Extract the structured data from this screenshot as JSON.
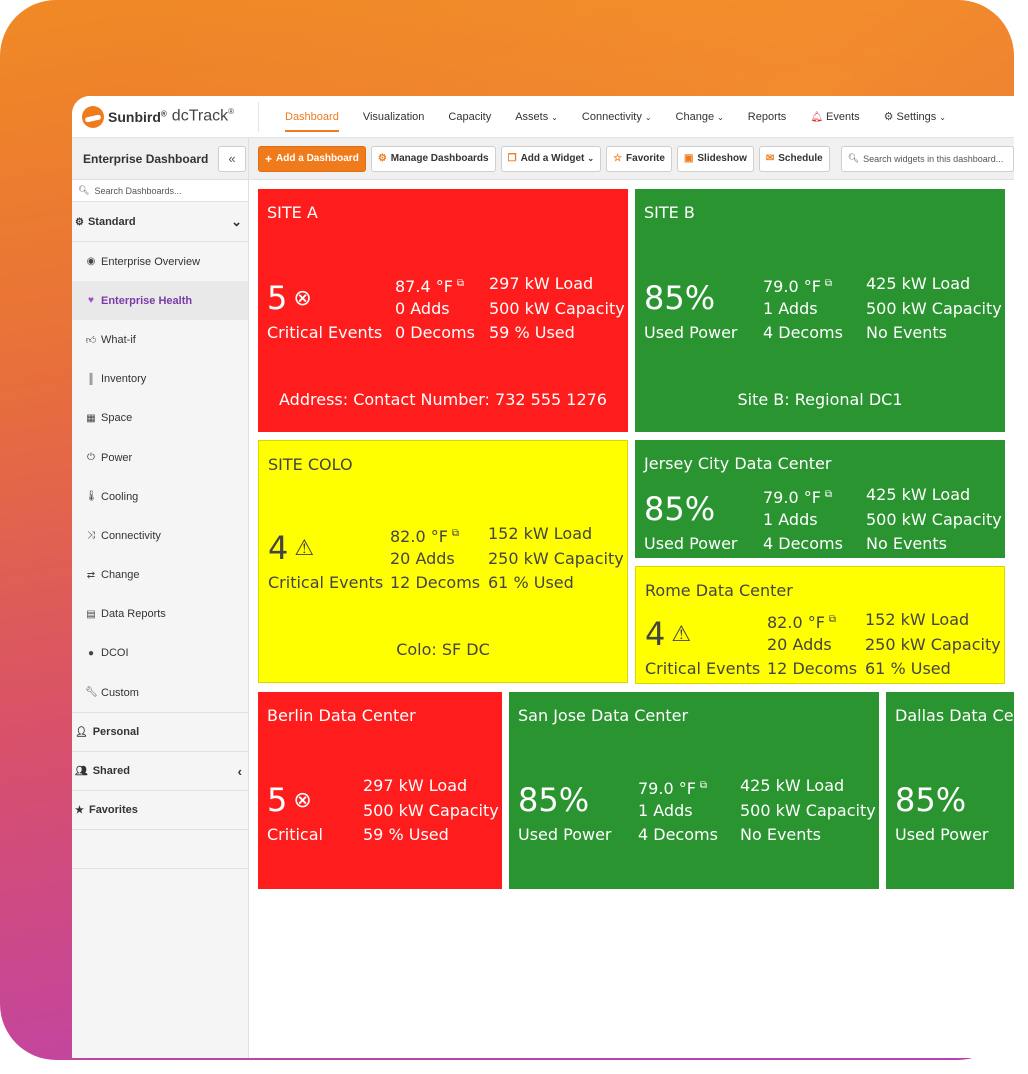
{
  "app": {
    "brand": "Sunbird",
    "product": "dcTrack",
    "reg_mark": "®"
  },
  "nav": {
    "items": [
      "Dashboard",
      "Visualization",
      "Capacity",
      "Assets",
      "Connectivity",
      "Change",
      "Reports",
      "Events",
      "Settings"
    ]
  },
  "sidebar": {
    "title": "Enterprise Dashboard",
    "collapse_glyph": "«",
    "search_placeholder": "Search Dashboards...",
    "group_standard": "Standard",
    "items": [
      {
        "label": "Enterprise Overview",
        "icon": "globe-icon"
      },
      {
        "label": "Enterprise Health",
        "icon": "heart-icon"
      },
      {
        "label": "What-if",
        "icon": "thumbs-up-icon"
      },
      {
        "label": "Inventory",
        "icon": "barcode-icon"
      },
      {
        "label": "Space",
        "icon": "cubes-icon"
      },
      {
        "label": "Power",
        "icon": "power-icon"
      },
      {
        "label": "Cooling",
        "icon": "thermometer-icon"
      },
      {
        "label": "Connectivity",
        "icon": "random-icon"
      },
      {
        "label": "Change",
        "icon": "exchange-icon"
      },
      {
        "label": "Data Reports",
        "icon": "list-icon"
      },
      {
        "label": "DCOI",
        "icon": "circle-icon"
      },
      {
        "label": "Custom",
        "icon": "wrench-icon"
      }
    ],
    "personal": "Personal",
    "shared": "Shared",
    "favorites": "Favorites"
  },
  "toolbar": {
    "add_dashboard": "Add a Dashboard",
    "manage_dashboards": "Manage Dashboards",
    "add_widget": "Add a Widget",
    "favorite": "Favorite",
    "slideshow": "Slideshow",
    "schedule": "Schedule",
    "search_placeholder": "Search widgets in this dashboard..."
  },
  "tiles": {
    "site_a": {
      "name": "SITE A",
      "big": "5",
      "big_label": "Critical Events",
      "temp": "87.4 °F",
      "adds": "0 Adds",
      "decoms": "0 Decoms",
      "load": "297 kW Load",
      "capacity": "500 kW Capacity",
      "used": "59 % Used",
      "footer": "Address: Contact Number: 732 555 1276",
      "status_color": "#fe1c1c"
    },
    "site_b": {
      "name": "SITE B",
      "big": "85%",
      "big_label": "Used Power",
      "temp": "79.0 °F",
      "adds": "1 Adds",
      "decoms": "4 Decoms",
      "load": "425 kW Load",
      "capacity": "500 kW Capacity",
      "events": "No Events",
      "footer": "Site B: Regional DC1",
      "status_color": "#2a9530"
    },
    "site_colo": {
      "name": "SITE COLO",
      "big": "4",
      "big_label": "Critical Events",
      "temp": "82.0 °F",
      "adds": "20 Adds",
      "decoms": "12 Decoms",
      "load": "152 kW Load",
      "capacity": "250 kW Capacity",
      "used": "61 % Used",
      "footer": "Colo: SF DC",
      "status_color": "#ffff00"
    },
    "jersey": {
      "name": "Jersey City Data Center",
      "big": "85%",
      "big_label": "Used Power",
      "temp": "79.0 °F",
      "adds": "1 Adds",
      "decoms": "4 Decoms",
      "load": "425 kW Load",
      "capacity": "500 kW Capacity",
      "events": "No Events"
    },
    "rome": {
      "name": "Rome Data Center",
      "big": "4",
      "big_label": "Critical Events",
      "temp": "82.0 °F",
      "adds": "20 Adds",
      "decoms": "12 Decoms",
      "load": "152 kW Load",
      "capacity": "250 kW Capacity",
      "used": "61 % Used"
    },
    "berlin": {
      "name": "Berlin Data Center",
      "big": "5",
      "big_label": "Critical",
      "load": "297 kW Load",
      "capacity": "500 kW Capacity",
      "used": "59 % Used"
    },
    "san_jose": {
      "name": "San Jose Data Center",
      "big": "85%",
      "big_label": "Used Power",
      "temp": "79.0 °F",
      "adds": "1 Adds",
      "decoms": "4 Decoms",
      "load": "425 kW Load",
      "capacity": "500 kW Capacity",
      "events": "No Events"
    },
    "dallas": {
      "name": "Dallas Data Cen",
      "big": "85%",
      "big_label": "Used Power"
    }
  }
}
